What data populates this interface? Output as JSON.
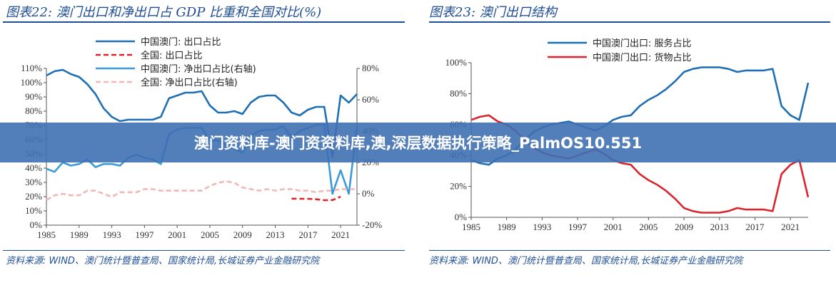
{
  "left_panel": {
    "title": "图表22:  澳门出口和净出口占 GDP 比重和全国对比(%)",
    "source": "资料来源: WIND、澳门统计暨普查局、国家统计局,长城证券产业金融研究院"
  },
  "right_panel": {
    "title": "图表23:  澳门出口结构",
    "source": "资料来源: WIND、澳门统计暨普查局、国家统计局,长城证券产业金融研究院"
  },
  "overlay": {
    "text": "澳门资料库-澳门资资料库,澳,深层数据执行策略_PalmOS10.551"
  },
  "chart_data": [
    {
      "type": "line",
      "title": "澳门出口和净出口占 GDP 比重和全国对比(%)",
      "x_ticks": [
        "1985",
        "1989",
        "1993",
        "1997",
        "2001",
        "2005",
        "2009",
        "2013",
        "2017",
        "2021"
      ],
      "xlim": [
        1985,
        2023
      ],
      "y_left_ticks": [
        "0%",
        "10%",
        "20%",
        "30%",
        "40%",
        "50%",
        "60%",
        "70%",
        "80%",
        "90%",
        "100%",
        "110%"
      ],
      "y_left_lim": [
        0,
        110
      ],
      "y_right_ticks": [
        "-20%",
        "0%",
        "20%",
        "40%",
        "60%",
        "80%"
      ],
      "y_right_lim": [
        -20,
        80
      ],
      "legend_position": "top-center",
      "series": [
        {
          "name": "中国澳门: 出口占比",
          "axis": "left",
          "color": "#1f6fb5",
          "dash": "solid",
          "x": [
            1985,
            1986,
            1987,
            1988,
            1989,
            1990,
            1991,
            1992,
            1993,
            1994,
            1995,
            1996,
            1997,
            1998,
            1999,
            2000,
            2001,
            2002,
            2003,
            2004,
            2005,
            2006,
            2007,
            2008,
            2009,
            2010,
            2011,
            2012,
            2013,
            2014,
            2015,
            2016,
            2017,
            2018,
            2019,
            2020,
            2021,
            2022,
            2023
          ],
          "y": [
            105,
            108,
            109,
            106,
            104,
            99,
            92,
            82,
            76,
            73,
            74,
            74,
            74,
            74,
            76,
            89,
            91,
            93,
            93,
            94,
            84,
            79,
            79,
            80,
            78,
            86,
            90,
            91,
            91,
            86,
            79,
            77,
            81,
            83,
            83,
            48,
            91,
            86,
            92
          ]
        },
        {
          "name": "全国: 出口占比",
          "axis": "left",
          "color": "#d9262e",
          "dash": "dashed",
          "x": [
            2015,
            2016,
            2017,
            2018,
            2019,
            2020,
            2021
          ],
          "y": [
            18.6,
            18.5,
            18.5,
            18.2,
            17.5,
            17.6,
            20.0
          ]
        },
        {
          "name": "中国澳门: 净出口占比(右轴)",
          "axis": "right",
          "color": "#3a9ad9",
          "dash": "solid",
          "x": [
            1985,
            1986,
            1987,
            1988,
            1989,
            1990,
            1991,
            1992,
            1993,
            1994,
            1995,
            1996,
            1997,
            1998,
            1999,
            2000,
            2001,
            2002,
            2003,
            2004,
            2005,
            2006,
            2007,
            2008,
            2009,
            2010,
            2011,
            2012,
            2013,
            2014,
            2015,
            2016,
            2017,
            2018,
            2019,
            2020,
            2021,
            2022,
            2023
          ],
          "y": [
            16,
            14,
            20,
            18,
            19,
            22,
            17,
            19,
            19,
            18,
            23,
            25,
            23,
            22,
            19,
            38,
            41,
            42,
            42,
            42,
            34,
            34,
            31,
            29,
            26,
            37,
            40,
            41,
            41,
            43,
            36,
            40,
            42,
            44,
            44,
            0,
            15,
            0,
            43
          ]
        },
        {
          "name": "全国: 净出口占比(右轴)",
          "axis": "right",
          "color": "#f2b8b8",
          "dash": "dashed",
          "x": [
            1985,
            1986,
            1987,
            1988,
            1989,
            1990,
            1991,
            1992,
            1993,
            1994,
            1995,
            1996,
            1997,
            1998,
            1999,
            2000,
            2001,
            2002,
            2003,
            2004,
            2005,
            2006,
            2007,
            2008,
            2009,
            2010,
            2011,
            2012,
            2013,
            2014,
            2015,
            2016,
            2017,
            2018,
            2019,
            2020,
            2021,
            2022,
            2023
          ],
          "y": [
            -4,
            -1,
            0,
            -1,
            -1,
            2,
            2,
            0,
            -2,
            1,
            1,
            1,
            3,
            3,
            2,
            2,
            2,
            2,
            2,
            2,
            5,
            7,
            8,
            7,
            4,
            3,
            2,
            3,
            2,
            3,
            3,
            2,
            2,
            1,
            2,
            2,
            3,
            3,
            3
          ]
        }
      ]
    },
    {
      "type": "line",
      "title": "澳门出口结构",
      "x_ticks": [
        "1985",
        "1989",
        "1993",
        "1997",
        "2001",
        "2005",
        "2009",
        "2013",
        "2017",
        "2021"
      ],
      "xlim": [
        1985,
        2023
      ],
      "y_ticks": [
        "0%",
        "20%",
        "40%",
        "60%",
        "80%",
        "100%"
      ],
      "ylim": [
        0,
        100
      ],
      "legend_position": "top-center",
      "series": [
        {
          "name": "中国澳门出口: 服务占比",
          "color": "#1f6fb5",
          "dash": "solid",
          "x": [
            1985,
            1986,
            1987,
            1988,
            1989,
            1990,
            1991,
            1992,
            1993,
            1994,
            1995,
            1996,
            1997,
            1998,
            1999,
            2000,
            2001,
            2002,
            2003,
            2004,
            2005,
            2006,
            2007,
            2008,
            2009,
            2010,
            2011,
            2012,
            2013,
            2014,
            2015,
            2016,
            2017,
            2018,
            2019,
            2020,
            2021,
            2022,
            2023
          ],
          "y": [
            37,
            35,
            34,
            38,
            40,
            44,
            50,
            55,
            58,
            60,
            61,
            62,
            60,
            58,
            56,
            59,
            63,
            65,
            66,
            72,
            76,
            79,
            83,
            88,
            94,
            96,
            97,
            97,
            97,
            96,
            94,
            95,
            95,
            95,
            96,
            72,
            66,
            63,
            87
          ]
        },
        {
          "name": "中国澳门出口: 货物占比",
          "color": "#d9262e",
          "dash": "solid",
          "x": [
            1985,
            1986,
            1987,
            1988,
            1989,
            1990,
            1991,
            1992,
            1993,
            1994,
            1995,
            1996,
            1997,
            1998,
            1999,
            2000,
            2001,
            2002,
            2003,
            2004,
            2005,
            2006,
            2007,
            2008,
            2009,
            2010,
            2011,
            2012,
            2013,
            2014,
            2015,
            2016,
            2017,
            2018,
            2019,
            2020,
            2021,
            2022,
            2023
          ],
          "y": [
            63,
            65,
            66,
            62,
            60,
            56,
            50,
            45,
            42,
            40,
            39,
            38,
            40,
            42,
            44,
            41,
            37,
            35,
            34,
            28,
            24,
            21,
            17,
            12,
            6,
            4,
            3,
            3,
            3,
            4,
            6,
            5,
            5,
            5,
            4,
            28,
            34,
            37,
            13
          ]
        }
      ]
    }
  ]
}
